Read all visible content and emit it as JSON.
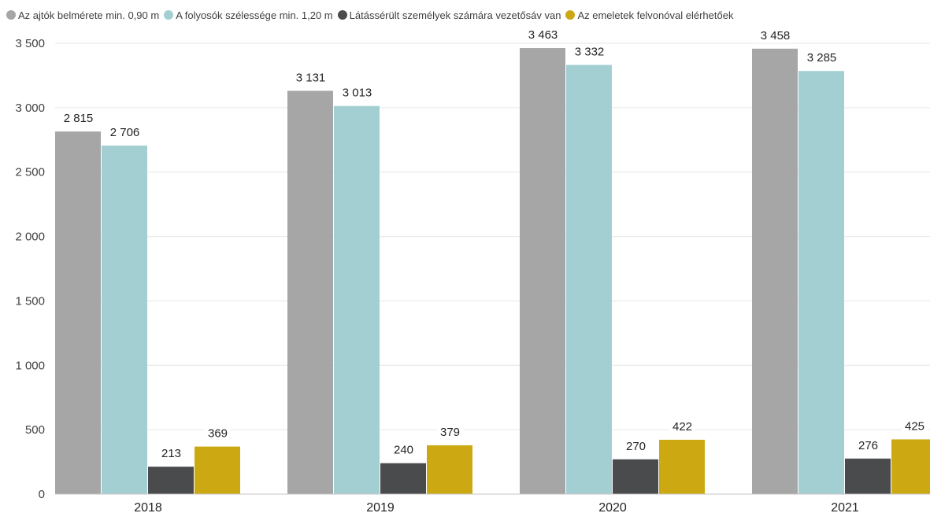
{
  "chart_data": {
    "type": "bar",
    "categories": [
      "2018",
      "2019",
      "2020",
      "2021"
    ],
    "series": [
      {
        "name": "Az ajtók belmérete min. 0,90 m",
        "color": "#a6a6a6",
        "values": [
          2815,
          3131,
          3463,
          3458
        ]
      },
      {
        "name": "A folyosók szélessége min. 1,20 m",
        "color": "#a3cfd3",
        "values": [
          2706,
          3013,
          3332,
          3285
        ]
      },
      {
        "name": "Látássérült személyek számára vezetősáv van",
        "color": "#4a4b4d",
        "values": [
          213,
          240,
          270,
          276
        ]
      },
      {
        "name": "Az emeletek felvonóval elérhetőek",
        "color": "#cca913",
        "values": [
          369,
          379,
          422,
          425
        ]
      }
    ],
    "value_labels": [
      [
        "2 815",
        "3 131",
        "3 463",
        "3 458"
      ],
      [
        "2 706",
        "3 013",
        "3 332",
        "3 285"
      ],
      [
        "213",
        "240",
        "270",
        "276"
      ],
      [
        "369",
        "379",
        "422",
        "425"
      ]
    ],
    "yticks": [
      {
        "value": 0,
        "label": "0"
      },
      {
        "value": 500,
        "label": "500"
      },
      {
        "value": 1000,
        "label": "1 000"
      },
      {
        "value": 1500,
        "label": "1 500"
      },
      {
        "value": 2000,
        "label": "2 000"
      },
      {
        "value": 2500,
        "label": "2 500"
      },
      {
        "value": 3000,
        "label": "3 000"
      },
      {
        "value": 3500,
        "label": "3 500"
      }
    ],
    "ylim": [
      0,
      3500
    ],
    "grid": true,
    "legend_position": "top-left"
  }
}
